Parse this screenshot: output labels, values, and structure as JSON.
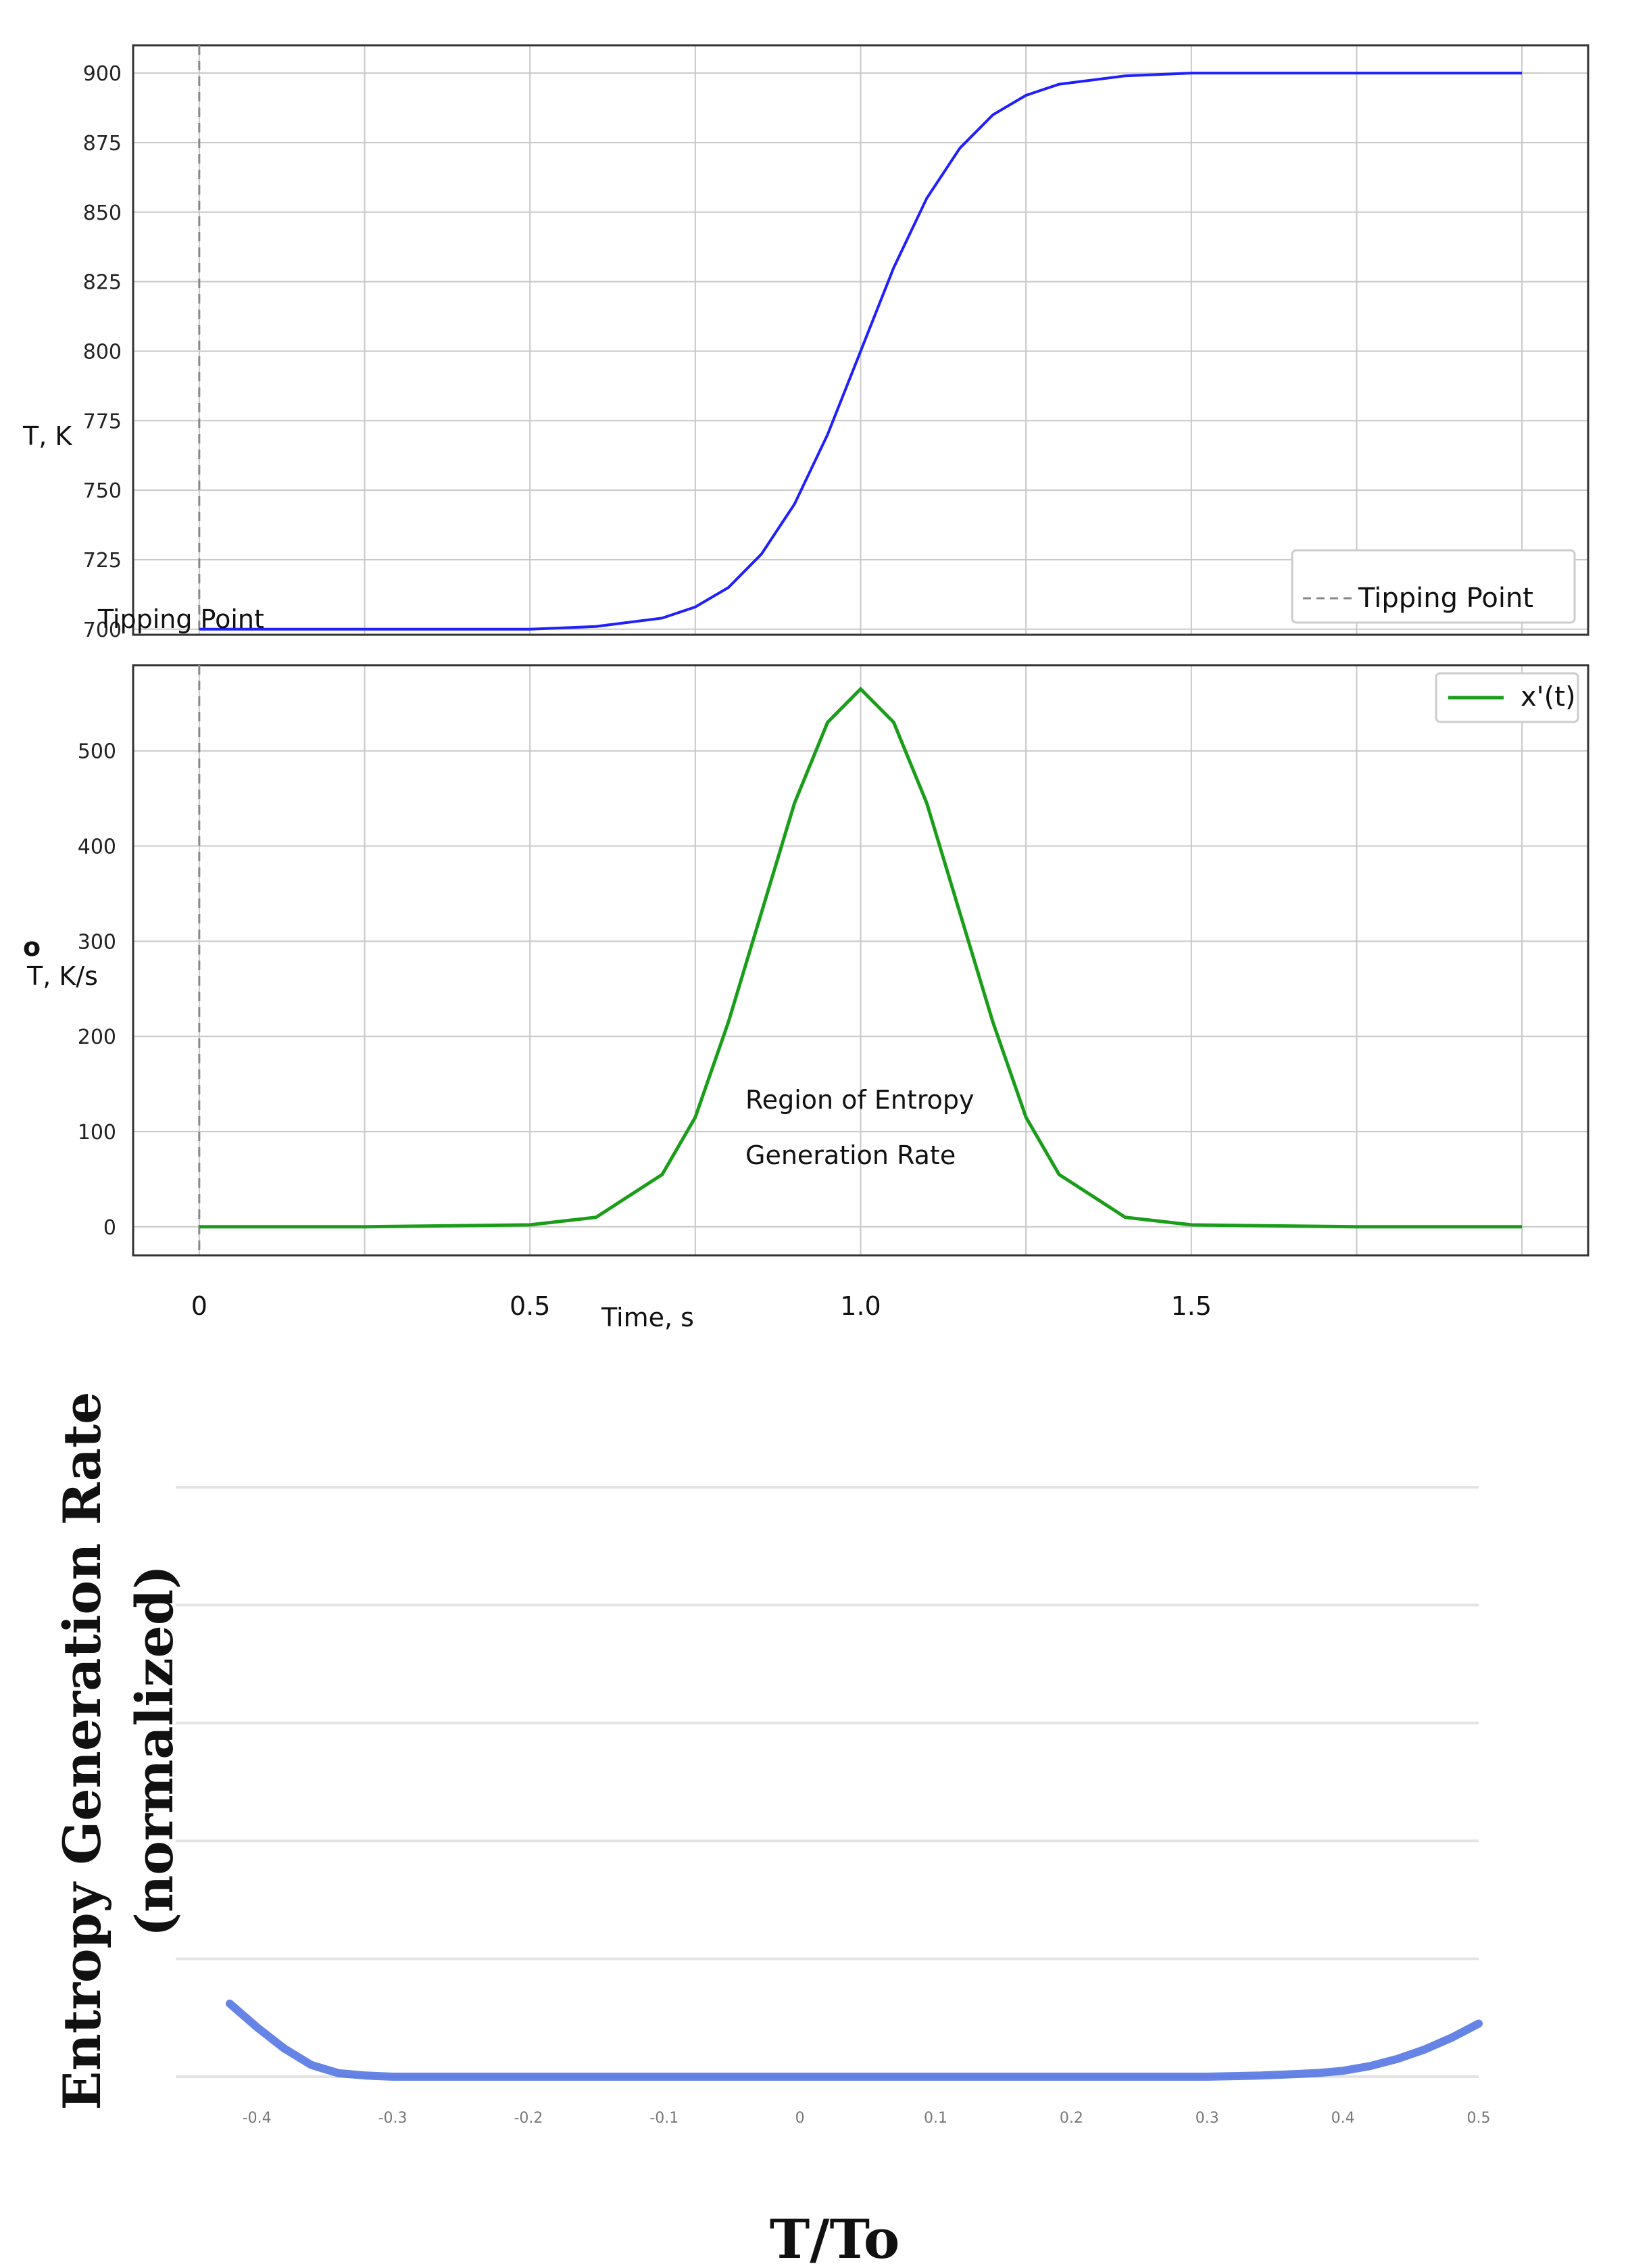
{
  "chart_data": [
    {
      "type": "line",
      "ylabel": "T, K",
      "xlim": [
        -0.1,
        2.1
      ],
      "ylim": [
        698,
        910
      ],
      "yticks": [
        "700",
        "725",
        "750",
        "775",
        "800",
        "825",
        "850",
        "875",
        "900"
      ],
      "grid": true,
      "series": [
        {
          "color": "#1f1fff",
          "x": [
            0,
            0.25,
            0.5,
            0.6,
            0.7,
            0.75,
            0.8,
            0.85,
            0.9,
            0.95,
            1.0,
            1.05,
            1.1,
            1.15,
            1.2,
            1.25,
            1.3,
            1.4,
            1.5,
            1.75,
            2.0
          ],
          "y": [
            700,
            700,
            700,
            701,
            704,
            708,
            715,
            727,
            745,
            770,
            800,
            830,
            855,
            873,
            885,
            892,
            896,
            899,
            900,
            900,
            900
          ]
        }
      ],
      "vline": {
        "x": 0,
        "style": "dashed",
        "label": "Tipping Point"
      },
      "legend": {
        "position": "bottom-right",
        "entries": [
          {
            "label": "Tipping Point",
            "style": "dashed",
            "color": "#888888"
          }
        ]
      }
    },
    {
      "type": "line",
      "ylabel": "T, K/s",
      "ylabel_mark": "o",
      "xlabel": "Time, s",
      "xlim": [
        -0.1,
        2.1
      ],
      "ylim": [
        -30,
        590
      ],
      "yticks": [
        "0",
        "100",
        "200",
        "300",
        "400",
        "500"
      ],
      "xticks": [
        "0",
        "0.5",
        "1.0",
        "1.5"
      ],
      "grid": true,
      "series": [
        {
          "name": "x'(t)",
          "color": "#1a9e1a",
          "x": [
            0,
            0.25,
            0.5,
            0.6,
            0.7,
            0.75,
            0.8,
            0.85,
            0.9,
            0.95,
            1.0,
            1.05,
            1.1,
            1.15,
            1.2,
            1.25,
            1.3,
            1.4,
            1.5,
            1.75,
            2.0
          ],
          "y": [
            0,
            0,
            2,
            10,
            55,
            115,
            215,
            330,
            445,
            530,
            565,
            530,
            445,
            330,
            215,
            115,
            55,
            10,
            2,
            0,
            0
          ]
        }
      ],
      "vline": {
        "x": 0,
        "style": "dashed"
      },
      "annotation": {
        "line1": "Region of Entropy",
        "line2": "Generation Rate",
        "x": 1.0,
        "y": 110
      },
      "legend": {
        "position": "top-right",
        "entries": [
          {
            "label": "x'(t)",
            "color": "#1a9e1a"
          }
        ]
      }
    },
    {
      "type": "line",
      "ylabel_line1": "Entropy Generation Rate",
      "ylabel_line2": "(normalized)",
      "xlabel": "T/To",
      "xlim": [
        -0.42,
        0.5
      ],
      "ylim": [
        0,
        5
      ],
      "xticks": [
        "-0.4",
        "-0.3",
        "-0.2",
        "-0.1",
        "0",
        "0.1",
        "0.2",
        "0.3",
        "0.4",
        "0.5"
      ],
      "grid": true,
      "series": [
        {
          "color": "#4a6ee0",
          "x": [
            -0.42,
            -0.4,
            -0.38,
            -0.36,
            -0.34,
            -0.32,
            -0.3,
            -0.2,
            -0.1,
            0,
            0.1,
            0.2,
            0.3,
            0.34,
            0.38,
            0.4,
            0.42,
            0.44,
            0.46,
            0.48,
            0.5
          ],
          "y": [
            0.62,
            0.42,
            0.24,
            0.1,
            0.03,
            0.01,
            0,
            0,
            0,
            0,
            0,
            0,
            0,
            0.01,
            0.03,
            0.05,
            0.09,
            0.15,
            0.23,
            0.33,
            0.45
          ]
        }
      ]
    }
  ]
}
